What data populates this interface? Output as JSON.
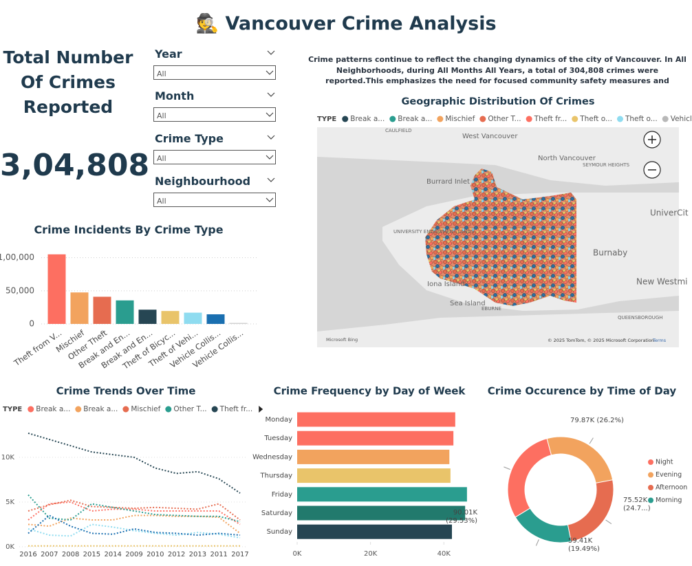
{
  "header": {
    "icon": "🕵️",
    "title": "Vancouver Crime Analysis"
  },
  "kpi": {
    "label": "Total Number Of Crimes Reported",
    "value": "3,04,808"
  },
  "filters": [
    {
      "label": "Year",
      "value": "All"
    },
    {
      "label": "Month",
      "value": "All"
    },
    {
      "label": "Crime Type",
      "value": "All"
    },
    {
      "label": "Neighbourhood",
      "value": "All"
    }
  ],
  "narrative": "Crime patterns continue to reflect the changing dynamics of the city of Vancouver. In All Neighborhoods, during All Months All Years, a total of 304,808 crimes were reported.This emphasizes the need for focused community safety measures and continuous monitoring to address ...",
  "chart_data": [
    {
      "type": "bar",
      "title": "Crime Incidents By Crime Type",
      "categories": [
        "Theft from V...",
        "Mischief",
        "Other Theft",
        "Break and En...",
        "Break and En...",
        "Theft of Bicyc...",
        "Theft of Vehi...",
        "Vehicle Collis...",
        "Vehicle Collis..."
      ],
      "values": [
        105000,
        47500,
        41000,
        35500,
        21500,
        19500,
        17000,
        14500,
        1500
      ],
      "colors": [
        "#fd6f61",
        "#f2a35e",
        "#e66c50",
        "#2a9d8f",
        "#264653",
        "#e9c46a",
        "#8fdcf0",
        "#1a6fb0",
        "#d0d0d0"
      ],
      "ylim": [
        0,
        110000
      ],
      "yticks": [
        0,
        {
          "value": 50000,
          "label": "50,000"
        },
        {
          "value": 100000,
          "label": "1,00,000"
        }
      ],
      "grid": true
    },
    {
      "type": "map",
      "title": "Geographic Distribution Of Crimes",
      "legend_title": "TYPE",
      "series": [
        {
          "name": "Break a...",
          "color": "#264653"
        },
        {
          "name": "Break a...",
          "color": "#2a9d8f"
        },
        {
          "name": "Mischief",
          "color": "#f2a35e"
        },
        {
          "name": "Other T...",
          "color": "#e66c50"
        },
        {
          "name": "Theft fr...",
          "color": "#fd6f61"
        },
        {
          "name": "Theft o...",
          "color": "#e9c46a"
        },
        {
          "name": "Theft o...",
          "color": "#8fdcf0"
        },
        {
          "name": "Vehicle...",
          "color": "#b8b8b8"
        }
      ],
      "place_labels": [
        "West Vancouver",
        "North Vancouver",
        "Burrard Inlet",
        "UNIVERSITY ENDOWMENT LANDS",
        "Burnaby",
        "Sea Island",
        "Iona Island",
        "New Westmi",
        "UniverCit",
        "EBURNE",
        "CAULFIELD",
        "SEYMOUR HEIGHTS",
        "QUEENSBOROUGH"
      ],
      "attribution": [
        "Microsoft Bing",
        "© 2025 TomTom, © 2025 Microsoft Corporation",
        "Terms"
      ]
    },
    {
      "type": "line",
      "title": "Crime Trends Over Time",
      "legend_title": "TYPE",
      "categories": [
        "2016",
        "2007",
        "2008",
        "2015",
        "2014",
        "2009",
        "2010",
        "2012",
        "2013",
        "2011",
        "2017"
      ],
      "series": [
        {
          "name": "Break a...",
          "color": "#fd6f61",
          "values": [
            3000,
            4800,
            5000,
            4000,
            4200,
            4200,
            4000,
            4000,
            4000,
            4000,
            2500
          ]
        },
        {
          "name": "Break a...",
          "color": "#f2a35e",
          "values": [
            2500,
            2300,
            3200,
            3000,
            3000,
            3500,
            3500,
            3400,
            3400,
            3300,
            1500
          ]
        },
        {
          "name": "Mischief",
          "color": "#e66c50",
          "values": [
            4000,
            4700,
            5200,
            4500,
            4400,
            4300,
            4400,
            4300,
            4200,
            4800,
            3000
          ]
        },
        {
          "name": "Other T...",
          "color": "#2a9d8f",
          "values": [
            5800,
            3200,
            3000,
            4800,
            4400,
            4000,
            3600,
            3500,
            3400,
            3400,
            2800
          ]
        },
        {
          "name": "Theft fr...",
          "color": "#264653",
          "values": [
            12700,
            12000,
            11300,
            10600,
            10300,
            10000,
            8800,
            8200,
            8400,
            7600,
            6000
          ]
        },
        {
          "color": "#8fdcf0",
          "values": [
            2000,
            1300,
            1200,
            2500,
            2200,
            1800,
            1500,
            1300,
            1600,
            1400,
            1000
          ]
        },
        {
          "color": "#1a6fb0",
          "values": [
            1500,
            3500,
            2300,
            1500,
            1400,
            2000,
            1600,
            1500,
            1300,
            1500,
            1300
          ]
        },
        {
          "color": "#e9c46a",
          "values": [
            100,
            100,
            100,
            100,
            100,
            100,
            100,
            100,
            100,
            100,
            100
          ]
        }
      ],
      "ylim": [
        0,
        13500
      ],
      "yticks": [
        {
          "value": 0,
          "label": "0K"
        },
        {
          "value": 5000,
          "label": "5K"
        },
        {
          "value": 10000,
          "label": "10K"
        }
      ]
    },
    {
      "type": "hbar",
      "title": "Crime Frequency by Day of Week",
      "categories": [
        "Monday",
        "Tuesday",
        "Wednesday",
        "Thursday",
        "Friday",
        "Saturday",
        "Sunday"
      ],
      "values": [
        43100,
        42600,
        41500,
        41800,
        46300,
        45800,
        42200
      ],
      "colors": [
        "#fd6f61",
        "#fd6f61",
        "#f2a35e",
        "#e9c46a",
        "#2a9d8f",
        "#227a6d",
        "#264653"
      ],
      "xlim": [
        0,
        50000
      ],
      "xticks": [
        {
          "value": 0,
          "label": "0K"
        },
        {
          "value": 20000,
          "label": "20K"
        },
        {
          "value": 40000,
          "label": "40K"
        }
      ]
    },
    {
      "type": "pie",
      "title": "Crime Occurence by Time of Day",
      "categories": [
        "Night",
        "Evening",
        "Afternoon",
        "Morning"
      ],
      "values": [
        90.01,
        79.87,
        75.52,
        59.41
      ],
      "value_labels": [
        "90.01K (29.53%)",
        "79.87K (26.2%)",
        "75.52K (24.7...)",
        "59.41K (19.49%)"
      ],
      "colors": [
        "#fd6f61",
        "#f2a35e",
        "#e66c50",
        "#2a9d8f"
      ]
    }
  ]
}
